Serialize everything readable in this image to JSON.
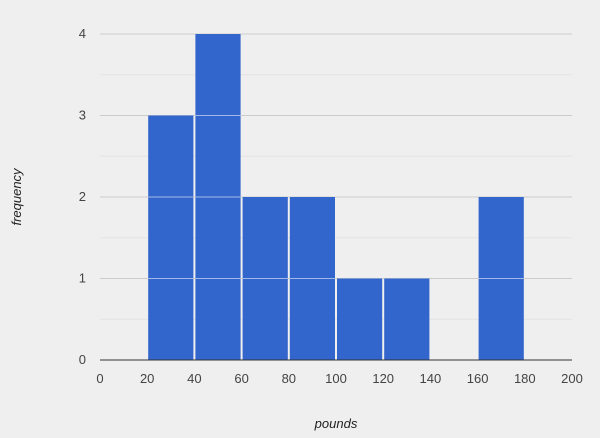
{
  "chart_data": {
    "type": "bar",
    "subtype": "histogram",
    "title": "",
    "xlabel": "pounds",
    "ylabel": "frequency",
    "bins": [
      {
        "start": 20,
        "end": 40,
        "count": 3
      },
      {
        "start": 40,
        "end": 60,
        "count": 4
      },
      {
        "start": 60,
        "end": 80,
        "count": 2
      },
      {
        "start": 80,
        "end": 100,
        "count": 2
      },
      {
        "start": 100,
        "end": 120,
        "count": 1
      },
      {
        "start": 120,
        "end": 140,
        "count": 1
      },
      {
        "start": 160,
        "end": 180,
        "count": 2
      }
    ],
    "xlim": [
      0,
      200
    ],
    "ylim": [
      0,
      4
    ],
    "x_ticks": [
      0,
      20,
      40,
      60,
      80,
      100,
      120,
      140,
      160,
      180,
      200
    ],
    "y_ticks": [
      0,
      1,
      2,
      3,
      4
    ],
    "grid": true,
    "minor_grid": true,
    "bar_color": "#3366cc",
    "gridline_color": "#cccccc",
    "background_color": "#efefef"
  }
}
